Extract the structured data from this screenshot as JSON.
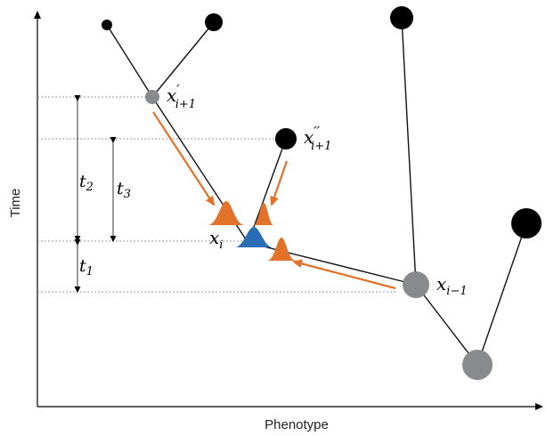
{
  "axes": {
    "x_label": "Phenotype",
    "y_label": "Time"
  },
  "labels": {
    "x_i": {
      "base": "x",
      "sub": "i"
    },
    "x_i_minus_1": {
      "base": "x",
      "sub": "i−1"
    },
    "x_prime_i_plus_1": {
      "base": "x",
      "sup": "′",
      "sub": "i+1"
    },
    "x_dprime_i_plus_1": {
      "base": "x",
      "sup": "′′",
      "sub": "i+1"
    }
  },
  "intervals": {
    "t1": {
      "base": "t",
      "sub": "1"
    },
    "t2": {
      "base": "t",
      "sub": "2"
    },
    "t3": {
      "base": "t",
      "sub": "3"
    }
  },
  "colors": {
    "leaf_node": "#000000",
    "internal_node": "#888a8d",
    "edge": "#111111",
    "arrow": "#e2722a",
    "distribution_orange": "#e2722a",
    "distribution_blue": "#2a6db5",
    "guide_line": "#777777"
  }
}
